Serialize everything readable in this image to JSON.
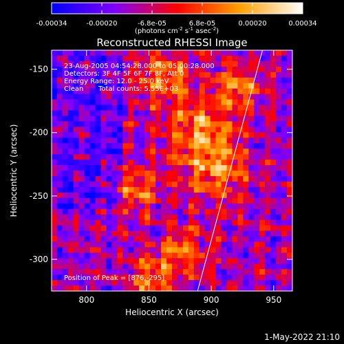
{
  "colorbar": {
    "ticks": [
      "-0.00034",
      "-0.00020",
      "-6.8e-05",
      "6.8e-05",
      "0.00020",
      "0.00034"
    ],
    "units_parts": [
      "(photons cm",
      "-2",
      " s",
      "-1",
      " asec",
      "-2",
      ")"
    ]
  },
  "chart_data": {
    "type": "heatmap",
    "title": "Reconstructed RHESSI Image",
    "xlabel": "Heliocentric X (arcsec)",
    "ylabel": "Heliocentric Y (arcsec)",
    "xlim": [
      772,
      965
    ],
    "ylim": [
      -325,
      -135
    ],
    "xticks": [
      800,
      850,
      900,
      950
    ],
    "yticks": [
      -150,
      -200,
      -250,
      -300
    ],
    "value_range": [
      -0.00034,
      0.00034
    ],
    "colormap": [
      "#0000ff",
      "#7f00ff",
      "#ff0000",
      "#ffa000",
      "#ffffff"
    ],
    "annotations": [
      "23-Aug-2005 04:54:28.000 to 05:00:28.000",
      "Detectors: 3F 4F 5F 6F 7F 8F, Att 0",
      "Energy Range: 12.0 - 25.0 keV",
      "Clean",
      "Total counts: 5.55E+03"
    ],
    "peak_label": "Position of Peak = [876,-295]",
    "limb_line": [
      [
        889,
        -325
      ],
      [
        941,
        -135
      ]
    ]
  },
  "footer": {
    "timestamp": "1-May-2022 21:10"
  }
}
